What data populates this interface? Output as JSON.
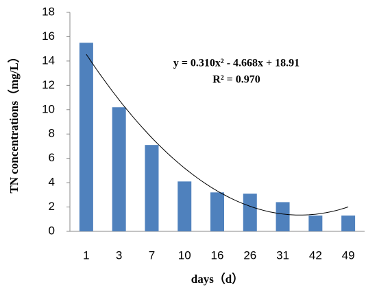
{
  "chart_data": {
    "type": "bar",
    "categories": [
      "1",
      "3",
      "7",
      "10",
      "16",
      "26",
      "31",
      "42",
      "49"
    ],
    "values": [
      15.5,
      10.2,
      7.1,
      4.1,
      3.2,
      3.1,
      2.4,
      1.3,
      1.3
    ],
    "color": "#4f81bd",
    "ylim": [
      0,
      18
    ],
    "yticks": [
      0,
      2,
      4,
      6,
      8,
      10,
      12,
      14,
      16,
      18
    ],
    "x_label": "days（d）",
    "y_label": "TN concentrations（mg/L）",
    "annotations": [
      "y = 0.310x² - 4.668x + 18.91",
      "R² = 0.970"
    ],
    "trendline": {
      "coefficients": [
        0.31,
        -4.668,
        18.91
      ],
      "color": "#000000"
    }
  }
}
